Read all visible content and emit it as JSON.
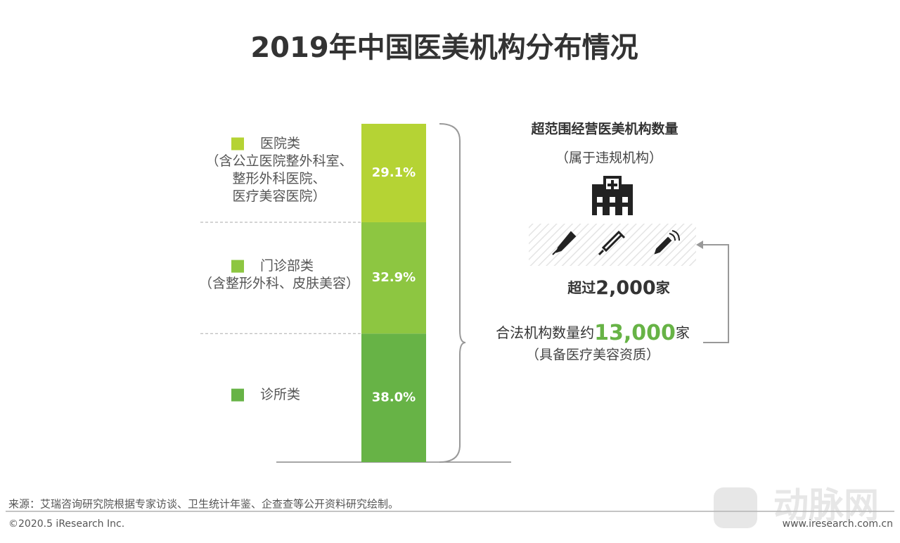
{
  "chart_data": {
    "type": "stacked_bar",
    "title": "2019年中国医美机构分布情况",
    "series": [
      {
        "name": "医院类",
        "note": [
          "（含公立医院整外科室、",
          "整形外科医院、",
          "医疗美容医院）"
        ],
        "color": "#b5d334",
        "values": [
          29.1
        ],
        "value_labels": [
          "29.1%"
        ]
      },
      {
        "name": "门诊部类",
        "note": [
          "（含整形外科、皮肤美容）"
        ],
        "color": "#8dc641",
        "values": [
          32.9
        ],
        "value_labels": [
          "32.9%"
        ]
      },
      {
        "name": "诊所类",
        "note": [],
        "color": "#67b346",
        "values": [
          38.0
        ],
        "value_labels": [
          "38.0%"
        ]
      }
    ],
    "annotations": {
      "illegal_title": "超范围经营医美机构数量",
      "illegal_note": "（属于违规机构）",
      "illegal_prefix": "超过",
      "illegal_count": "2,000",
      "illegal_suffix": "家",
      "legal_prefix": "合法机构数量约",
      "legal_count": "13,000",
      "legal_suffix": "家",
      "legal_note": "（具备医疗美容资质）"
    },
    "source": "来源：艾瑞咨询研究院根据专家访谈、卫生统计年鉴、企查查等公开资料研究绘制。",
    "copyright": "©2020.5 iResearch Inc.",
    "url": "www.iresearch.com.cn",
    "watermark": "动脉网"
  }
}
